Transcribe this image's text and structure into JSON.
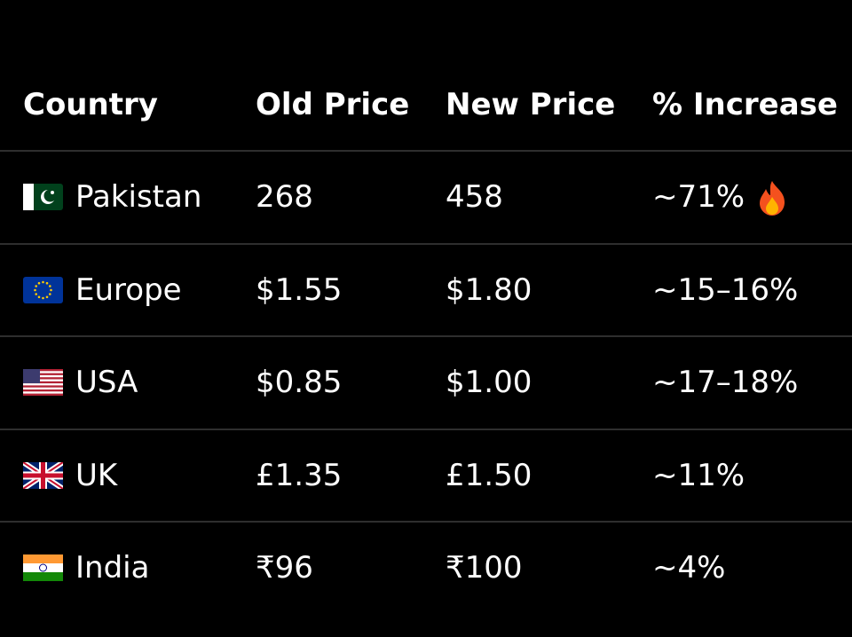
{
  "table": {
    "header": [
      "Country",
      "Old Price",
      "New Price",
      "% Increase"
    ],
    "rows": [
      [
        "Pakistan",
        "268",
        "458",
        "~71%"
      ],
      [
        "Europe",
        "$1.55",
        "$1.80",
        "~15–16%"
      ],
      [
        "USA",
        "$0.85",
        "$1.00",
        "~17–18%"
      ],
      [
        "UK",
        "£1.35",
        "£1.50",
        "~11%"
      ],
      [
        "India",
        "₹96",
        "₹100",
        "~4%"
      ]
    ]
  }
}
